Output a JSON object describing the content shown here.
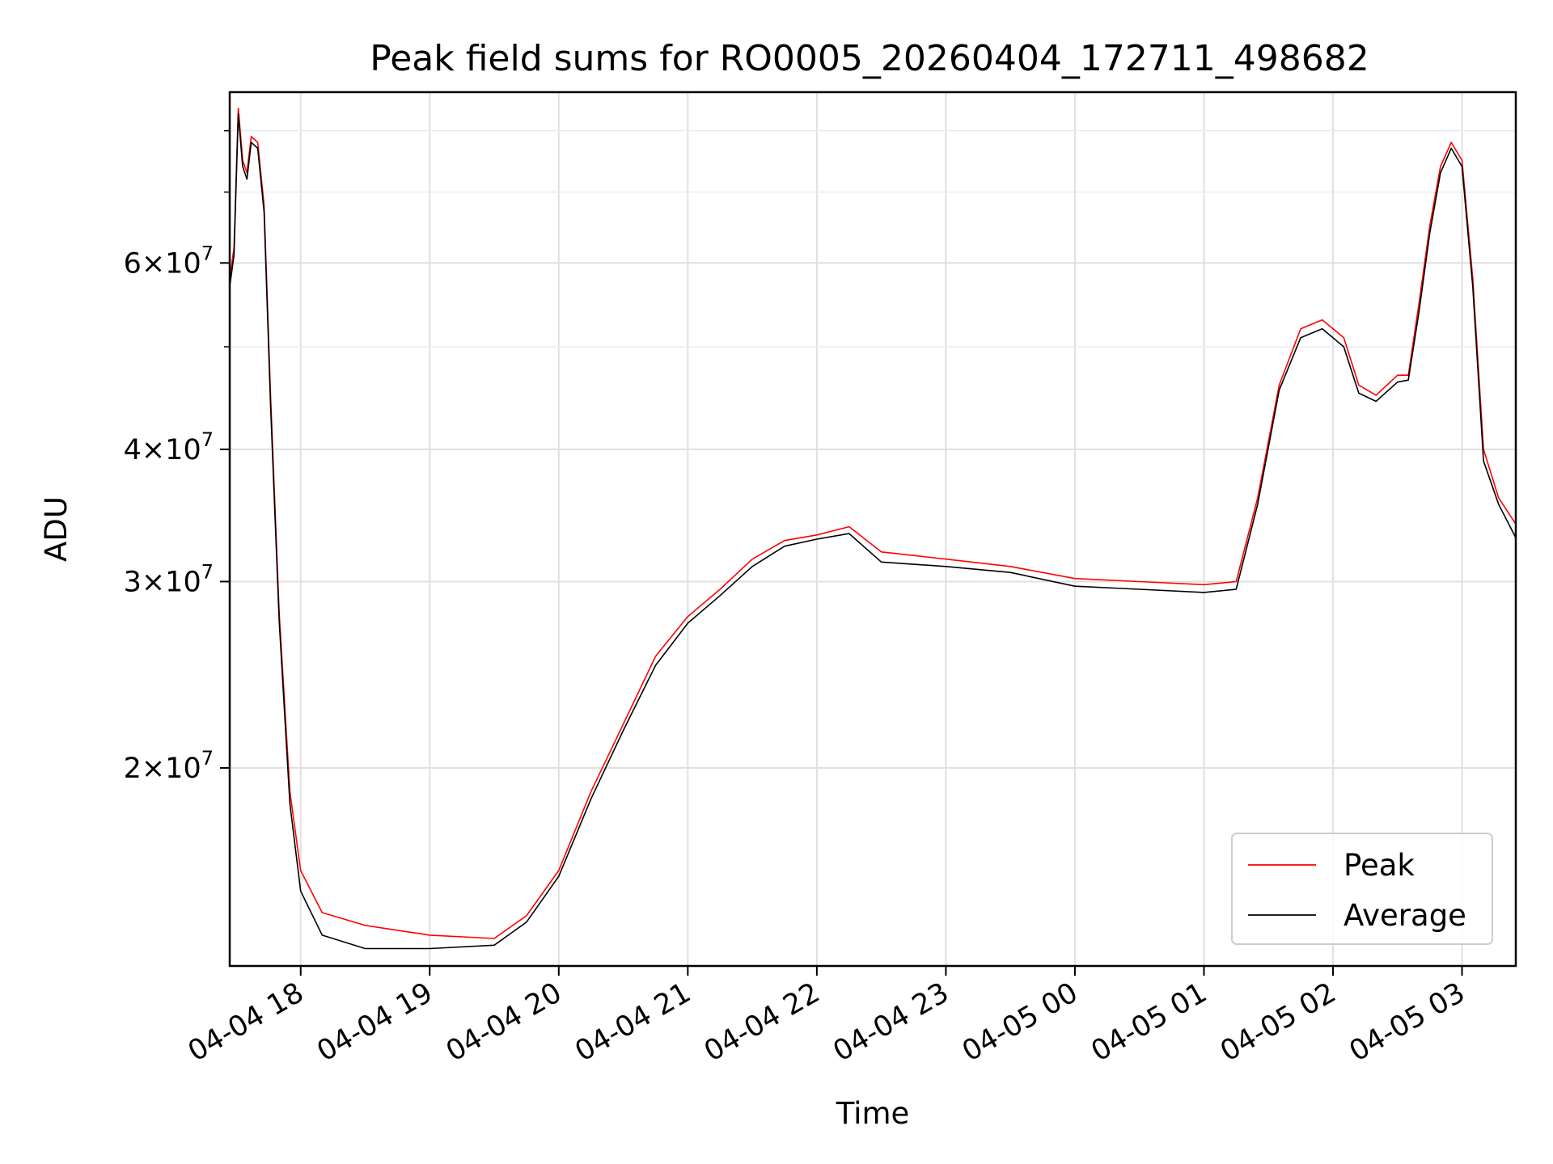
{
  "chart_data": {
    "type": "line",
    "title": "Peak field sums for RO0005_20260404_172711_498682",
    "xlabel": "Time",
    "ylabel": "ADU",
    "yscale": "log",
    "xlim": [
      "2026-04-04 17:27",
      "2026-04-05 03:25"
    ],
    "ylim": [
      13000000,
      87000000
    ],
    "grid": true,
    "legend_position": "lower right",
    "x_ticks": [
      {
        "t": "2026-04-04 18:00",
        "label": "04-04 18"
      },
      {
        "t": "2026-04-04 19:00",
        "label": "04-04 19"
      },
      {
        "t": "2026-04-04 20:00",
        "label": "04-04 20"
      },
      {
        "t": "2026-04-04 21:00",
        "label": "04-04 21"
      },
      {
        "t": "2026-04-04 22:00",
        "label": "04-04 22"
      },
      {
        "t": "2026-04-04 23:00",
        "label": "04-04 23"
      },
      {
        "t": "2026-04-05 00:00",
        "label": "04-05 00"
      },
      {
        "t": "2026-04-05 01:00",
        "label": "04-05 01"
      },
      {
        "t": "2026-04-05 02:00",
        "label": "04-05 02"
      },
      {
        "t": "2026-04-05 03:00",
        "label": "04-05 03"
      }
    ],
    "y_ticks": [
      {
        "value": 20000000,
        "base": "2",
        "exp": "7"
      },
      {
        "value": 30000000,
        "base": "3",
        "exp": "7"
      },
      {
        "value": 40000000,
        "base": "4",
        "exp": "7"
      },
      {
        "value": 60000000,
        "base": "6",
        "exp": "7"
      }
    ],
    "y_minor_ticks": [
      50000000,
      70000000,
      80000000
    ],
    "series": [
      {
        "name": "Peak",
        "color": "#ff0000",
        "points": [
          [
            "2026-04-04 17:27",
            58000000
          ],
          [
            "2026-04-04 17:29",
            62000000
          ],
          [
            "2026-04-04 17:31",
            84000000
          ],
          [
            "2026-04-04 17:33",
            75000000
          ],
          [
            "2026-04-04 17:35",
            73000000
          ],
          [
            "2026-04-04 17:37",
            79000000
          ],
          [
            "2026-04-04 17:40",
            78000000
          ],
          [
            "2026-04-04 17:43",
            68000000
          ],
          [
            "2026-04-04 17:46",
            45000000
          ],
          [
            "2026-04-04 17:50",
            28000000
          ],
          [
            "2026-04-04 17:55",
            19000000
          ],
          [
            "2026-04-04 18:00",
            16000000
          ],
          [
            "2026-04-04 18:10",
            14600000
          ],
          [
            "2026-04-04 18:30",
            14200000
          ],
          [
            "2026-04-04 19:00",
            13900000
          ],
          [
            "2026-04-04 19:30",
            13800000
          ],
          [
            "2026-04-04 19:45",
            14500000
          ],
          [
            "2026-04-04 20:00",
            16000000
          ],
          [
            "2026-04-04 20:15",
            19000000
          ],
          [
            "2026-04-04 20:30",
            22000000
          ],
          [
            "2026-04-04 20:45",
            25500000
          ],
          [
            "2026-04-04 21:00",
            27800000
          ],
          [
            "2026-04-04 21:15",
            29500000
          ],
          [
            "2026-04-04 21:30",
            31500000
          ],
          [
            "2026-04-04 21:45",
            32800000
          ],
          [
            "2026-04-04 22:00",
            33200000
          ],
          [
            "2026-04-04 22:15",
            33800000
          ],
          [
            "2026-04-04 22:30",
            32000000
          ],
          [
            "2026-04-04 23:00",
            31500000
          ],
          [
            "2026-04-04 23:30",
            31000000
          ],
          [
            "2026-04-05 00:00",
            30200000
          ],
          [
            "2026-04-05 00:30",
            30000000
          ],
          [
            "2026-04-05 01:00",
            29800000
          ],
          [
            "2026-04-05 01:15",
            30000000
          ],
          [
            "2026-04-05 01:25",
            36000000
          ],
          [
            "2026-04-05 01:35",
            46000000
          ],
          [
            "2026-04-05 01:45",
            52000000
          ],
          [
            "2026-04-05 01:55",
            53000000
          ],
          [
            "2026-04-05 02:05",
            51000000
          ],
          [
            "2026-04-05 02:12",
            46000000
          ],
          [
            "2026-04-05 02:20",
            45000000
          ],
          [
            "2026-04-05 02:30",
            47000000
          ],
          [
            "2026-04-05 02:35",
            47000000
          ],
          [
            "2026-04-05 02:40",
            55000000
          ],
          [
            "2026-04-05 02:45",
            65000000
          ],
          [
            "2026-04-05 02:50",
            74000000
          ],
          [
            "2026-04-05 02:55",
            78000000
          ],
          [
            "2026-04-05 03:00",
            75000000
          ],
          [
            "2026-04-05 03:05",
            58000000
          ],
          [
            "2026-04-05 03:10",
            40000000
          ],
          [
            "2026-04-05 03:17",
            36000000
          ],
          [
            "2026-04-05 03:25",
            34000000
          ]
        ]
      },
      {
        "name": "Average",
        "color": "#000000",
        "points": [
          [
            "2026-04-04 17:27",
            57000000
          ],
          [
            "2026-04-04 17:29",
            61000000
          ],
          [
            "2026-04-04 17:31",
            83000000
          ],
          [
            "2026-04-04 17:33",
            74000000
          ],
          [
            "2026-04-04 17:35",
            72000000
          ],
          [
            "2026-04-04 17:37",
            78000000
          ],
          [
            "2026-04-04 17:40",
            77000000
          ],
          [
            "2026-04-04 17:43",
            67000000
          ],
          [
            "2026-04-04 17:46",
            44000000
          ],
          [
            "2026-04-04 17:50",
            27500000
          ],
          [
            "2026-04-04 17:55",
            18500000
          ],
          [
            "2026-04-04 18:00",
            15300000
          ],
          [
            "2026-04-04 18:10",
            13900000
          ],
          [
            "2026-04-04 18:30",
            13500000
          ],
          [
            "2026-04-04 19:00",
            13500000
          ],
          [
            "2026-04-04 19:30",
            13600000
          ],
          [
            "2026-04-04 19:45",
            14300000
          ],
          [
            "2026-04-04 20:00",
            15800000
          ],
          [
            "2026-04-04 20:15",
            18700000
          ],
          [
            "2026-04-04 20:30",
            21700000
          ],
          [
            "2026-04-04 20:45",
            25000000
          ],
          [
            "2026-04-04 21:00",
            27400000
          ],
          [
            "2026-04-04 21:15",
            29100000
          ],
          [
            "2026-04-04 21:30",
            31000000
          ],
          [
            "2026-04-04 21:45",
            32400000
          ],
          [
            "2026-04-04 22:00",
            32900000
          ],
          [
            "2026-04-04 22:15",
            33300000
          ],
          [
            "2026-04-04 22:30",
            31300000
          ],
          [
            "2026-04-04 23:00",
            31000000
          ],
          [
            "2026-04-04 23:30",
            30600000
          ],
          [
            "2026-04-05 00:00",
            29700000
          ],
          [
            "2026-04-05 00:30",
            29500000
          ],
          [
            "2026-04-05 01:00",
            29300000
          ],
          [
            "2026-04-05 01:15",
            29500000
          ],
          [
            "2026-04-05 01:25",
            35500000
          ],
          [
            "2026-04-05 01:35",
            45500000
          ],
          [
            "2026-04-05 01:45",
            51000000
          ],
          [
            "2026-04-05 01:55",
            52000000
          ],
          [
            "2026-04-05 02:05",
            50000000
          ],
          [
            "2026-04-05 02:12",
            45200000
          ],
          [
            "2026-04-05 02:20",
            44400000
          ],
          [
            "2026-04-05 02:30",
            46300000
          ],
          [
            "2026-04-05 02:35",
            46500000
          ],
          [
            "2026-04-05 02:40",
            54000000
          ],
          [
            "2026-04-05 02:45",
            64000000
          ],
          [
            "2026-04-05 02:50",
            73000000
          ],
          [
            "2026-04-05 02:55",
            77000000
          ],
          [
            "2026-04-05 03:00",
            74000000
          ],
          [
            "2026-04-05 03:05",
            57000000
          ],
          [
            "2026-04-05 03:10",
            39000000
          ],
          [
            "2026-04-05 03:17",
            35500000
          ],
          [
            "2026-04-05 03:25",
            33000000
          ]
        ]
      }
    ]
  }
}
